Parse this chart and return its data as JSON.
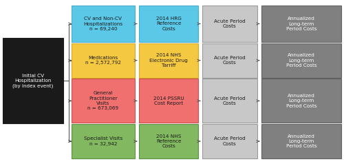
{
  "background_color": "#ffffff",
  "fig_width": 5.0,
  "fig_height": 2.38,
  "dpi": 100,
  "rows": [
    {
      "col1_text": "CV and Non-CV\nHospitalizations\nn = 69,240",
      "col1_color": "#5BC8E8",
      "col1_edge": "#4AACCC",
      "col2_text": "2014 HRG\nReference\nCosts",
      "col2_color": "#5BC8E8",
      "col2_edge": "#4AACCC"
    },
    {
      "col1_text": "Medications\nn = 2,572,792",
      "col1_color": "#F5C842",
      "col1_edge": "#D4A820",
      "col2_text": "2014 NHS\nElectronic Drug\nTarriff",
      "col2_color": "#F5C842",
      "col2_edge": "#D4A820"
    },
    {
      "col1_text": "General\nPractitioner\nVisits\nn = 673,069",
      "col1_color": "#F07070",
      "col1_edge": "#CC5050",
      "col2_text": "2014 PSSRU\nCost Report",
      "col2_color": "#F07070",
      "col2_edge": "#CC5050"
    },
    {
      "col1_text": "Specialist Visits\nn = 32,942",
      "col1_color": "#82B860",
      "col1_edge": "#5A9040",
      "col2_text": "2014 NHS\nReference\nCosts",
      "col2_color": "#82B860",
      "col2_edge": "#5A9040"
    }
  ],
  "left_box_text": "Initial CV\nHospitalization\n(by index event)",
  "left_box_color": "#1a1a1a",
  "left_box_text_color": "#ffffff",
  "col3_text": "Acute Period\nCosts",
  "col3_color": "#C8C8C8",
  "col3_edge": "#999999",
  "col4_text": "Annualized\nLong-term\nPeriod Costs",
  "col4_color": "#808080",
  "col4_edge": "#606060",
  "col4_text_color": "#ffffff",
  "arrow_color": "#555555",
  "font_size": 5.2
}
